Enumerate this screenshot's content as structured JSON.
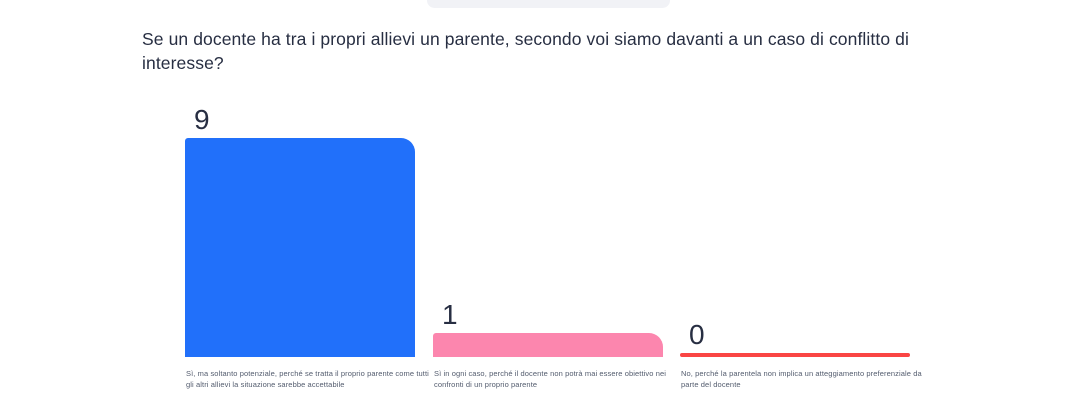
{
  "question": {
    "text": "Se un docente ha tra i propri allievi un parente, secondo voi siamo davanti a un caso di conflitto di interesse?"
  },
  "chart_data": {
    "type": "bar",
    "title": "Se un docente ha tra i propri allievi un parente, secondo voi siamo davanti a un caso di conflitto di interesse?",
    "categories": [
      "Sì, ma soltanto potenziale, perché se tratta il proprio parente come tutti gli altri allievi la situazione sarebbe accettabile",
      "Sì in ogni caso, perché il docente non potrà mai essere obiettivo nei confronti di un proprio parente",
      "No, perché la parentela non implica un atteggiamento preferenziale da parte del docente"
    ],
    "values": [
      9,
      1,
      0
    ],
    "bar_colors": [
      "#2170fa",
      "#fc86ae",
      "#fa4544"
    ],
    "ylim": [
      0,
      9
    ],
    "grid": false,
    "legend": "none",
    "value_labels_shown": true,
    "xlabel": "",
    "ylabel": ""
  },
  "colors": {
    "background": "#ffffff",
    "text_primary": "#272e42",
    "text_caption": "#535c6e",
    "top_pill": "#f1f2f6"
  }
}
